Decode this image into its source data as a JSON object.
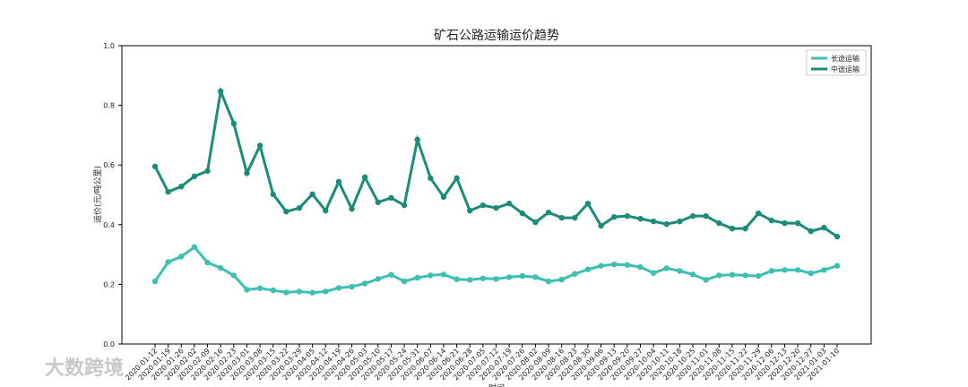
{
  "chart_data": {
    "type": "line",
    "title": "矿石公路运输运价趋势",
    "x_label": "时间",
    "y_label": "运价(元/吨公里)",
    "watermark": "大数跨境",
    "legend": "upper right",
    "categories": [
      "2020-01-12",
      "2020-01-19",
      "2020-01-26",
      "2020-02-02",
      "2020-02-09",
      "2020-02-16",
      "2020-02-23",
      "2020-03-01",
      "2020-03-08",
      "2020-03-15",
      "2020-03-22",
      "2020-03-29",
      "2020-04-05",
      "2020-04-12",
      "2020-04-19",
      "2020-04-26",
      "2020-05-03",
      "2020-05-10",
      "2020-05-17",
      "2020-05-24",
      "2020-05-31",
      "2020-06-07",
      "2020-06-14",
      "2020-06-21",
      "2020-06-28",
      "2020-07-05",
      "2020-07-12",
      "2020-07-19",
      "2020-07-26",
      "2020-08-02",
      "2020-08-09",
      "2020-08-16",
      "2020-08-23",
      "2020-08-30",
      "2020-09-06",
      "2020-09-13",
      "2020-09-20",
      "2020-09-27",
      "2020-10-04",
      "2020-10-11",
      "2020-10-18",
      "2020-10-25",
      "2020-11-01",
      "2020-11-08",
      "2020-11-15",
      "2020-11-22",
      "2020-11-29",
      "2020-12-06",
      "2020-12-13",
      "2020-12-20",
      "2020-12-27",
      "2021-01-03",
      "2021-01-10"
    ],
    "series": [
      {
        "name": "长途运输",
        "color": "#3dbfb1",
        "values": [
          0.21,
          0.275,
          0.293,
          0.325,
          0.273,
          0.255,
          0.23,
          0.182,
          0.187,
          0.18,
          0.173,
          0.176,
          0.172,
          0.176,
          0.188,
          0.192,
          0.203,
          0.218,
          0.232,
          0.21,
          0.222,
          0.23,
          0.233,
          0.217,
          0.215,
          0.22,
          0.218,
          0.224,
          0.228,
          0.224,
          0.21,
          0.216,
          0.235,
          0.25,
          0.262,
          0.267,
          0.265,
          0.258,
          0.238,
          0.254,
          0.245,
          0.233,
          0.215,
          0.23,
          0.232,
          0.23,
          0.228,
          0.245,
          0.248,
          0.248,
          0.237,
          0.248,
          0.262
        ]
      },
      {
        "name": "中途运输",
        "color": "#1a8c79",
        "values": [
          0.595,
          0.51,
          0.528,
          0.562,
          0.58,
          0.847,
          0.739,
          0.573,
          0.665,
          0.502,
          0.444,
          0.456,
          0.502,
          0.447,
          0.544,
          0.453,
          0.559,
          0.475,
          0.49,
          0.465,
          0.685,
          0.556,
          0.493,
          0.556,
          0.447,
          0.465,
          0.456,
          0.471,
          0.438,
          0.408,
          0.441,
          0.423,
          0.423,
          0.471,
          0.396,
          0.426,
          0.429,
          0.42,
          0.411,
          0.402,
          0.411,
          0.429,
          0.429,
          0.405,
          0.387,
          0.387,
          0.438,
          0.414,
          0.405,
          0.405,
          0.378,
          0.39,
          0.36
        ]
      }
    ],
    "ylim": [
      0,
      1
    ],
    "yticks": [
      {
        "value": 0,
        "label": "0.0"
      },
      {
        "value": 0.2,
        "label": "0.2"
      },
      {
        "value": 0.4,
        "label": "0.4"
      },
      {
        "value": 0.6,
        "label": "0.6"
      },
      {
        "value": 0.8,
        "label": "0.8"
      },
      {
        "value": 1,
        "label": "1.0"
      }
    ]
  }
}
